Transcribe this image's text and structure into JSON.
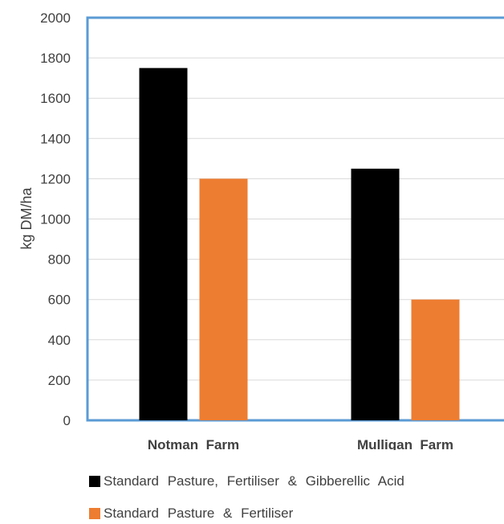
{
  "chart_data": {
    "type": "bar",
    "categories": [
      "Notman  Farm",
      "Mulligan  Farm"
    ],
    "series": [
      {
        "name": "Standard  Pasture,  Fertiliser  &  Gibberellic  Acid",
        "values": [
          1750,
          1250
        ],
        "color": "#000000"
      },
      {
        "name": "Standard Pasture & Fertiliser",
        "values": [
          1200,
          600
        ],
        "color": "#ED7D31"
      }
    ],
    "ylabel": "kg DM/ha",
    "xlabel": "",
    "ylim": [
      0,
      2000
    ],
    "yticks": [
      "0",
      "200",
      "400",
      "600",
      "800",
      "1000",
      "1200",
      "1400",
      "1600",
      "1800",
      "2000"
    ],
    "grid": true,
    "legend_position": "bottom"
  }
}
